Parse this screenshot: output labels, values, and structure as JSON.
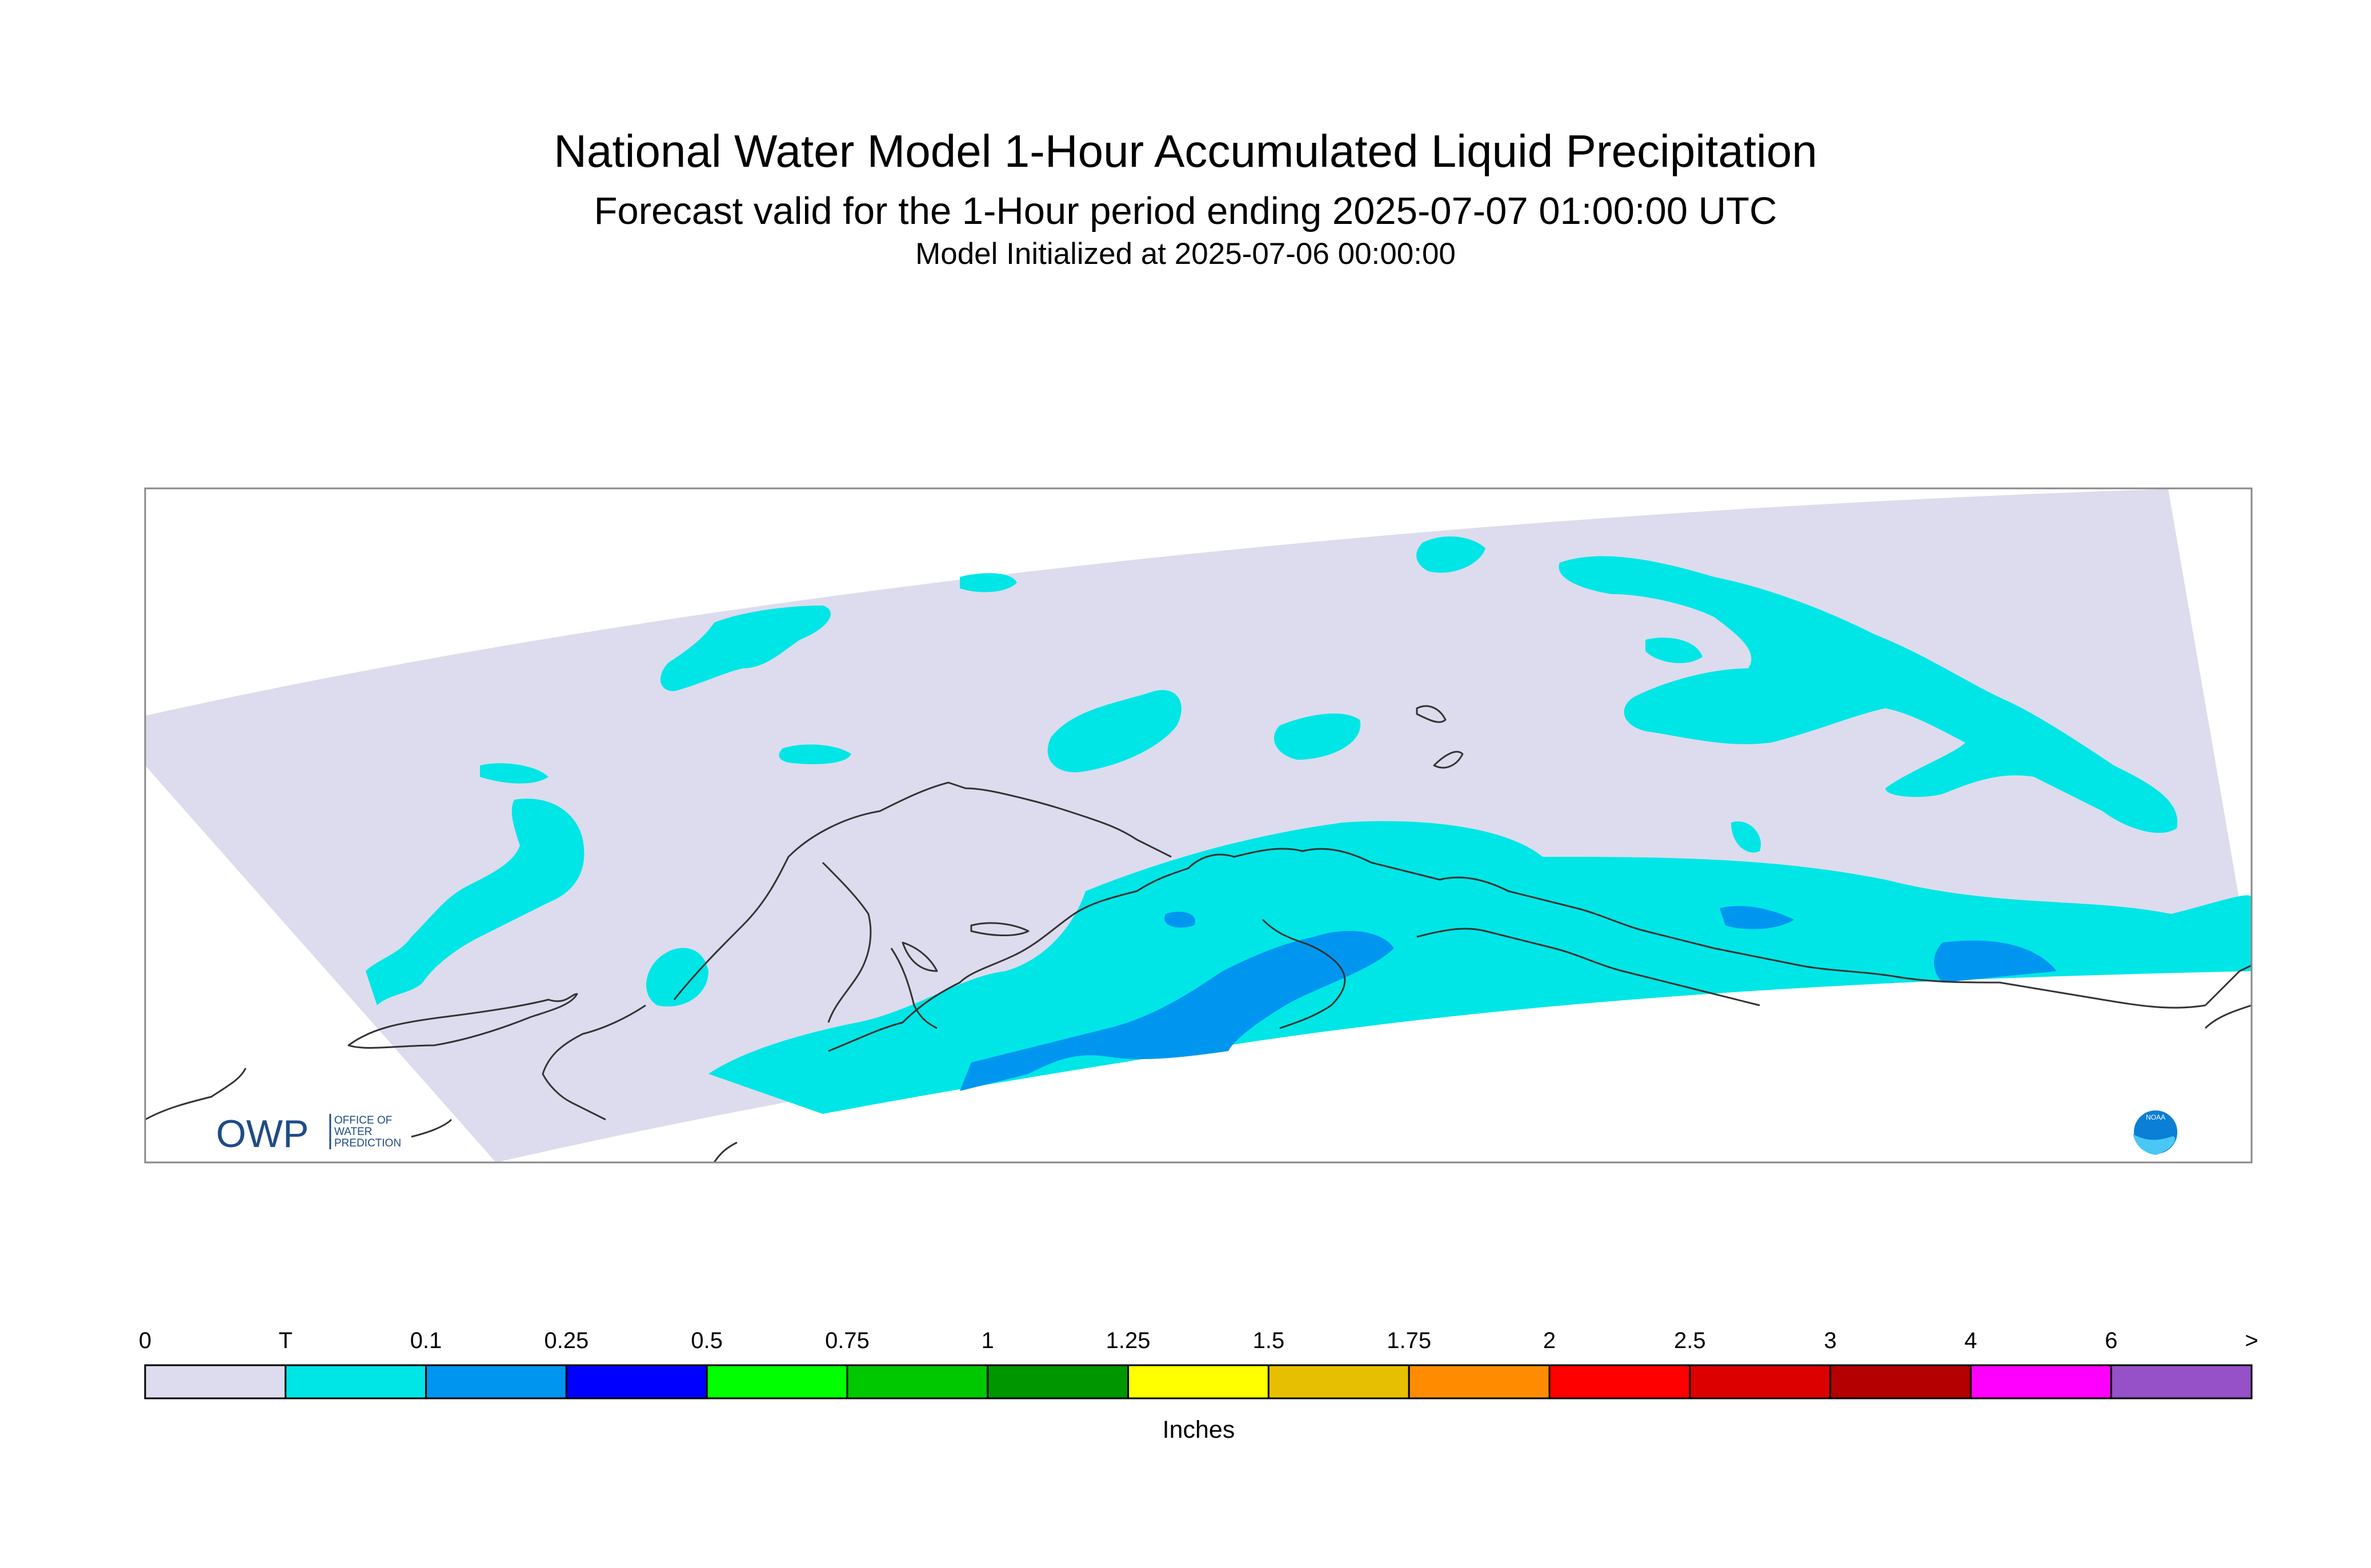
{
  "header": {
    "title": "National Water Model 1-Hour Accumulated Liquid Precipitation",
    "subtitle": "Forecast valid for the 1-Hour period ending 2025-07-07 01:00:00 UTC",
    "init_line": "Model Initialized at 2025-07-06 00:00:00"
  },
  "map": {
    "region": "Alaska",
    "background_color": "#dcdcee",
    "precip_colors": {
      "trace": "#00e6e6",
      "light": "#0096f0",
      "medium": "#0000ff"
    },
    "coast_color": "#333333",
    "owp_logo": {
      "letters": "OWP",
      "line1": "OFFICE OF",
      "line2": "WATER",
      "line3": "PREDICTION"
    },
    "noaa_logo": {
      "text": "NOAA"
    }
  },
  "legend": {
    "unit_label": "Inches",
    "tick_labels": [
      "0",
      "T",
      "0.1",
      "0.25",
      "0.5",
      "0.75",
      "1",
      "1.25",
      "1.5",
      "1.75",
      "2",
      "2.5",
      "3",
      "4",
      "6",
      ">"
    ],
    "bins": [
      {
        "from": "0",
        "to": "T",
        "color": "#dcdcee"
      },
      {
        "from": "T",
        "to": "0.1",
        "color": "#00e6e6"
      },
      {
        "from": "0.1",
        "to": "0.25",
        "color": "#0096f0"
      },
      {
        "from": "0.25",
        "to": "0.5",
        "color": "#0000ff"
      },
      {
        "from": "0.5",
        "to": "0.75",
        "color": "#00ff00"
      },
      {
        "from": "0.75",
        "to": "1",
        "color": "#00c800"
      },
      {
        "from": "1",
        "to": "1.25",
        "color": "#009600"
      },
      {
        "from": "1.25",
        "to": "1.5",
        "color": "#ffff00"
      },
      {
        "from": "1.5",
        "to": "1.75",
        "color": "#e6c000"
      },
      {
        "from": "1.75",
        "to": "2",
        "color": "#ff8c00"
      },
      {
        "from": "2",
        "to": "2.5",
        "color": "#ff0000"
      },
      {
        "from": "2.5",
        "to": "3",
        "color": "#dc0000"
      },
      {
        "from": "3",
        "to": "4",
        "color": "#b40000"
      },
      {
        "from": "4",
        "to": "6",
        "color": "#ff00ff"
      },
      {
        "from": "6",
        "to": ">",
        "color": "#9650c8"
      }
    ]
  }
}
